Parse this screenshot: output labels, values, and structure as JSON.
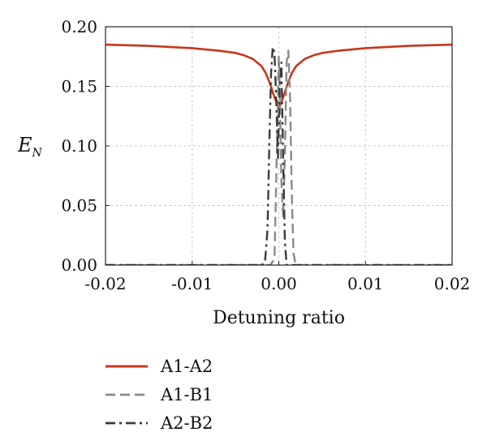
{
  "chart_data": {
    "type": "line",
    "xlabel": "Detuning ratio",
    "ylabel": {
      "main": "E",
      "sub": "N"
    },
    "xlim": [
      -0.02,
      0.02
    ],
    "ylim": [
      0.0,
      0.2
    ],
    "xticks": [
      -0.02,
      -0.01,
      0.0,
      0.01,
      0.02
    ],
    "xtick_labels": [
      "-0.02",
      "-0.01",
      "0.00",
      "0.01",
      "0.02"
    ],
    "yticks": [
      0.0,
      0.05,
      0.1,
      0.15,
      0.2
    ],
    "ytick_labels": [
      "0.00",
      "0.05",
      "0.10",
      "0.15",
      "0.20"
    ],
    "grid": true,
    "legend_position": "bottom-left",
    "series": [
      {
        "name": "A1-A2",
        "color": "#c8361b",
        "style": "solid",
        "x": [
          -0.02,
          -0.015,
          -0.01,
          -0.007,
          -0.005,
          -0.004,
          -0.003,
          -0.002,
          -0.0015,
          -0.001,
          -0.0007,
          -0.0004,
          -0.0002,
          0.0,
          0.0002,
          0.0004,
          0.0007,
          0.001,
          0.0015,
          0.002,
          0.003,
          0.004,
          0.005,
          0.007,
          0.01,
          0.015,
          0.02
        ],
        "y": [
          0.185,
          0.184,
          0.182,
          0.18,
          0.178,
          0.176,
          0.173,
          0.167,
          0.161,
          0.152,
          0.145,
          0.139,
          0.135,
          0.133,
          0.135,
          0.139,
          0.145,
          0.152,
          0.161,
          0.167,
          0.173,
          0.176,
          0.178,
          0.18,
          0.182,
          0.184,
          0.185
        ]
      },
      {
        "name": "A1-B1",
        "color": "#8a8a8a",
        "style": "dashed",
        "x": [
          -0.02,
          -0.001,
          -0.0005,
          -0.0003,
          -0.0001,
          0.0,
          0.0001,
          0.0003,
          0.0005,
          0.0007,
          0.0009,
          0.0011,
          0.0013,
          0.0015,
          0.0017,
          0.0019,
          0.002,
          0.02
        ],
        "y": [
          0.0,
          0.0,
          0.005,
          0.07,
          0.145,
          0.175,
          0.15,
          0.07,
          0.04,
          0.09,
          0.17,
          0.18,
          0.14,
          0.06,
          0.01,
          0.002,
          0.0,
          0.0
        ]
      },
      {
        "name": "A2-B2",
        "color": "#3a3a3a",
        "style": "dashdot",
        "x": [
          -0.02,
          -0.003,
          -0.002,
          -0.0016,
          -0.0013,
          -0.0011,
          -0.0009,
          -0.0007,
          -0.0005,
          -0.0003,
          -0.0001,
          0.0001,
          0.0003,
          0.0005,
          0.0007,
          0.0009,
          0.02
        ],
        "y": [
          0.0,
          0.0,
          0.0,
          0.002,
          0.03,
          0.1,
          0.16,
          0.183,
          0.178,
          0.14,
          0.09,
          0.15,
          0.17,
          0.09,
          0.02,
          0.0,
          0.0
        ]
      }
    ]
  }
}
